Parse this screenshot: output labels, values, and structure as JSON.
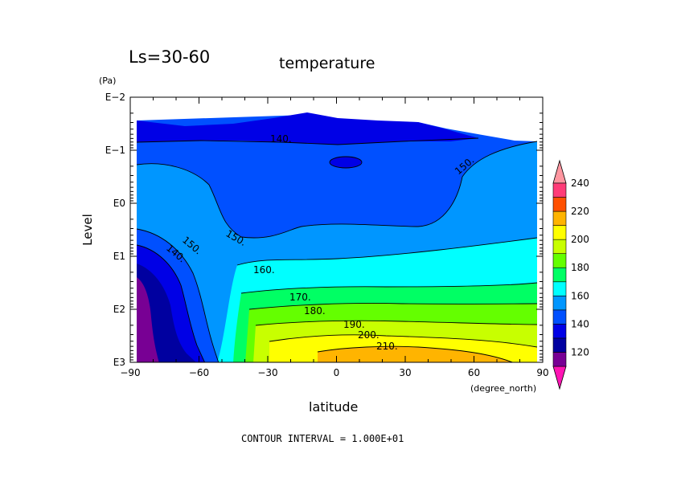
{
  "chart_data": {
    "type": "contour",
    "title": "temperature",
    "subtitle": "Ls=30-60",
    "xlabel": "latitude",
    "xunit": "(degree_north)",
    "ylabel": "Level",
    "yunit": "(Pa)",
    "xlim": [
      -90,
      90
    ],
    "x_ticks": [
      "−90",
      "−60",
      "−30",
      "0",
      "30",
      "60",
      "90"
    ],
    "y_scale": "log",
    "ylim": [
      1000,
      0.01
    ],
    "y_ticks": [
      "E−2",
      "E−1",
      "E0",
      "E1",
      "E2",
      "E3"
    ],
    "contour_interval_text": "CONTOUR INTERVAL = 1.000E+01",
    "contour_labels": [
      "140.",
      "150.",
      "150.",
      "150.",
      "140.",
      "160.",
      "170.",
      "180.",
      "190.",
      "200.",
      "210.",
      "150."
    ],
    "colorbar": {
      "ticks": [
        "120",
        "140",
        "160",
        "180",
        "200",
        "220",
        "240"
      ],
      "levels": [
        110,
        120,
        130,
        140,
        150,
        160,
        170,
        180,
        190,
        200,
        210,
        220,
        230,
        240,
        250
      ],
      "colors": [
        "#ff14b4",
        "#780094",
        "#0000a0",
        "#0000e6",
        "#0050ff",
        "#0096ff",
        "#00ffff",
        "#00ff64",
        "#64ff00",
        "#c8ff00",
        "#ffff00",
        "#ffb400",
        "#ff5000",
        "#ff3c78",
        "#ff96a0"
      ]
    }
  }
}
